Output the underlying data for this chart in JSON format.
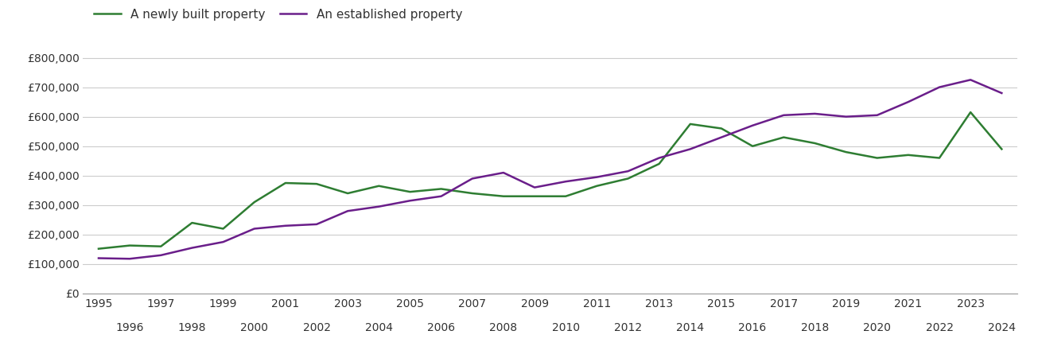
{
  "years": [
    1995,
    1996,
    1997,
    1998,
    1999,
    2000,
    2001,
    2002,
    2003,
    2004,
    2005,
    2006,
    2007,
    2008,
    2009,
    2010,
    2011,
    2012,
    2013,
    2014,
    2015,
    2016,
    2017,
    2018,
    2019,
    2020,
    2021,
    2022,
    2023,
    2024
  ],
  "new_build": [
    152000,
    163000,
    160000,
    240000,
    220000,
    310000,
    375000,
    372000,
    340000,
    365000,
    345000,
    355000,
    340000,
    330000,
    330000,
    330000,
    365000,
    390000,
    440000,
    575000,
    560000,
    500000,
    530000,
    510000,
    480000,
    460000,
    470000,
    460000,
    615000,
    490000
  ],
  "established": [
    120000,
    118000,
    130000,
    155000,
    175000,
    220000,
    230000,
    235000,
    280000,
    295000,
    315000,
    330000,
    390000,
    410000,
    360000,
    380000,
    395000,
    415000,
    460000,
    490000,
    530000,
    570000,
    605000,
    610000,
    600000,
    605000,
    650000,
    700000,
    725000,
    680000
  ],
  "new_build_color": "#2e7d32",
  "established_color": "#6a1e8a",
  "new_build_label": "A newly built property",
  "established_label": "An established property",
  "ylim": [
    0,
    850000
  ],
  "yticks": [
    0,
    100000,
    200000,
    300000,
    400000,
    500000,
    600000,
    700000,
    800000
  ],
  "ytick_labels": [
    "£0",
    "£100,000",
    "£200,000",
    "£300,000",
    "£400,000",
    "£500,000",
    "£600,000",
    "£700,000",
    "£800,000"
  ],
  "bg_color": "#ffffff",
  "line_width": 1.8,
  "grid_color": "#cccccc",
  "legend_fontsize": 11,
  "tick_fontsize": 10
}
